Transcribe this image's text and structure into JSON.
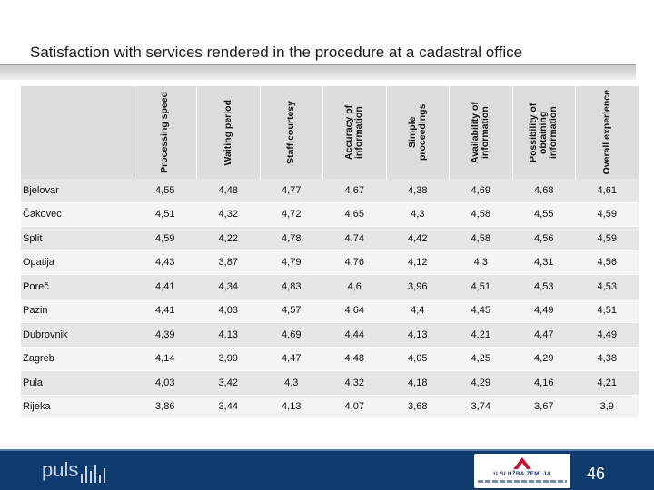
{
  "slide": {
    "title": "Satisfaction with services rendered in the procedure at a cadastral office",
    "page_number": "46"
  },
  "table": {
    "columns": [
      "Processing speed",
      "Waiting period",
      "Staff courtesy",
      "Accuracy of information",
      "Simple proceedings",
      "Availability of information",
      "Possibility of obtaining information",
      "Overall experience"
    ],
    "rows": [
      {
        "city": "Bjelovar",
        "values": [
          "4,55",
          "4,48",
          "4,77",
          "4,67",
          "4,38",
          "4,69",
          "4,68",
          "4,61"
        ]
      },
      {
        "city": "Čakovec",
        "values": [
          "4,51",
          "4,32",
          "4,72",
          "4,65",
          "4,3",
          "4,58",
          "4,55",
          "4,59"
        ]
      },
      {
        "city": "Split",
        "values": [
          "4,59",
          "4,22",
          "4,78",
          "4,74",
          "4,42",
          "4,58",
          "4,56",
          "4,59"
        ]
      },
      {
        "city": "Opatija",
        "values": [
          "4,43",
          "3,87",
          "4,79",
          "4,76",
          "4,12",
          "4,3",
          "4,31",
          "4,56"
        ]
      },
      {
        "city": "Poreč",
        "values": [
          "4,41",
          "4,34",
          "4,83",
          "4,6",
          "3,96",
          "4,51",
          "4,53",
          "4,53"
        ]
      },
      {
        "city": "Pazin",
        "values": [
          "4,41",
          "4,03",
          "4,57",
          "4,64",
          "4,4",
          "4,45",
          "4,49",
          "4,51"
        ]
      },
      {
        "city": "Dubrovnik",
        "values": [
          "4,39",
          "4,13",
          "4,69",
          "4,44",
          "4,13",
          "4,21",
          "4,47",
          "4,49"
        ]
      },
      {
        "city": "Zagreb",
        "values": [
          "4,14",
          "3,99",
          "4,47",
          "4,48",
          "4,05",
          "4,25",
          "4,29",
          "4,38"
        ]
      },
      {
        "city": "Pula",
        "values": [
          "4,03",
          "3,42",
          "4,3",
          "4,32",
          "4,18",
          "4,29",
          "4,16",
          "4,21"
        ]
      },
      {
        "city": "Rijeka",
        "values": [
          "3,86",
          "3,44",
          "4,13",
          "4,07",
          "3,68",
          "3,74",
          "3,67",
          "3,9"
        ]
      }
    ]
  },
  "footer": {
    "brand_word": "puls",
    "partner_name": "U SLUŽBA ZEMLJA",
    "colors": {
      "footer_bg": "#0e3a6e",
      "brand_text": "#c9d6e8",
      "partner_red": "#c8102e"
    }
  }
}
